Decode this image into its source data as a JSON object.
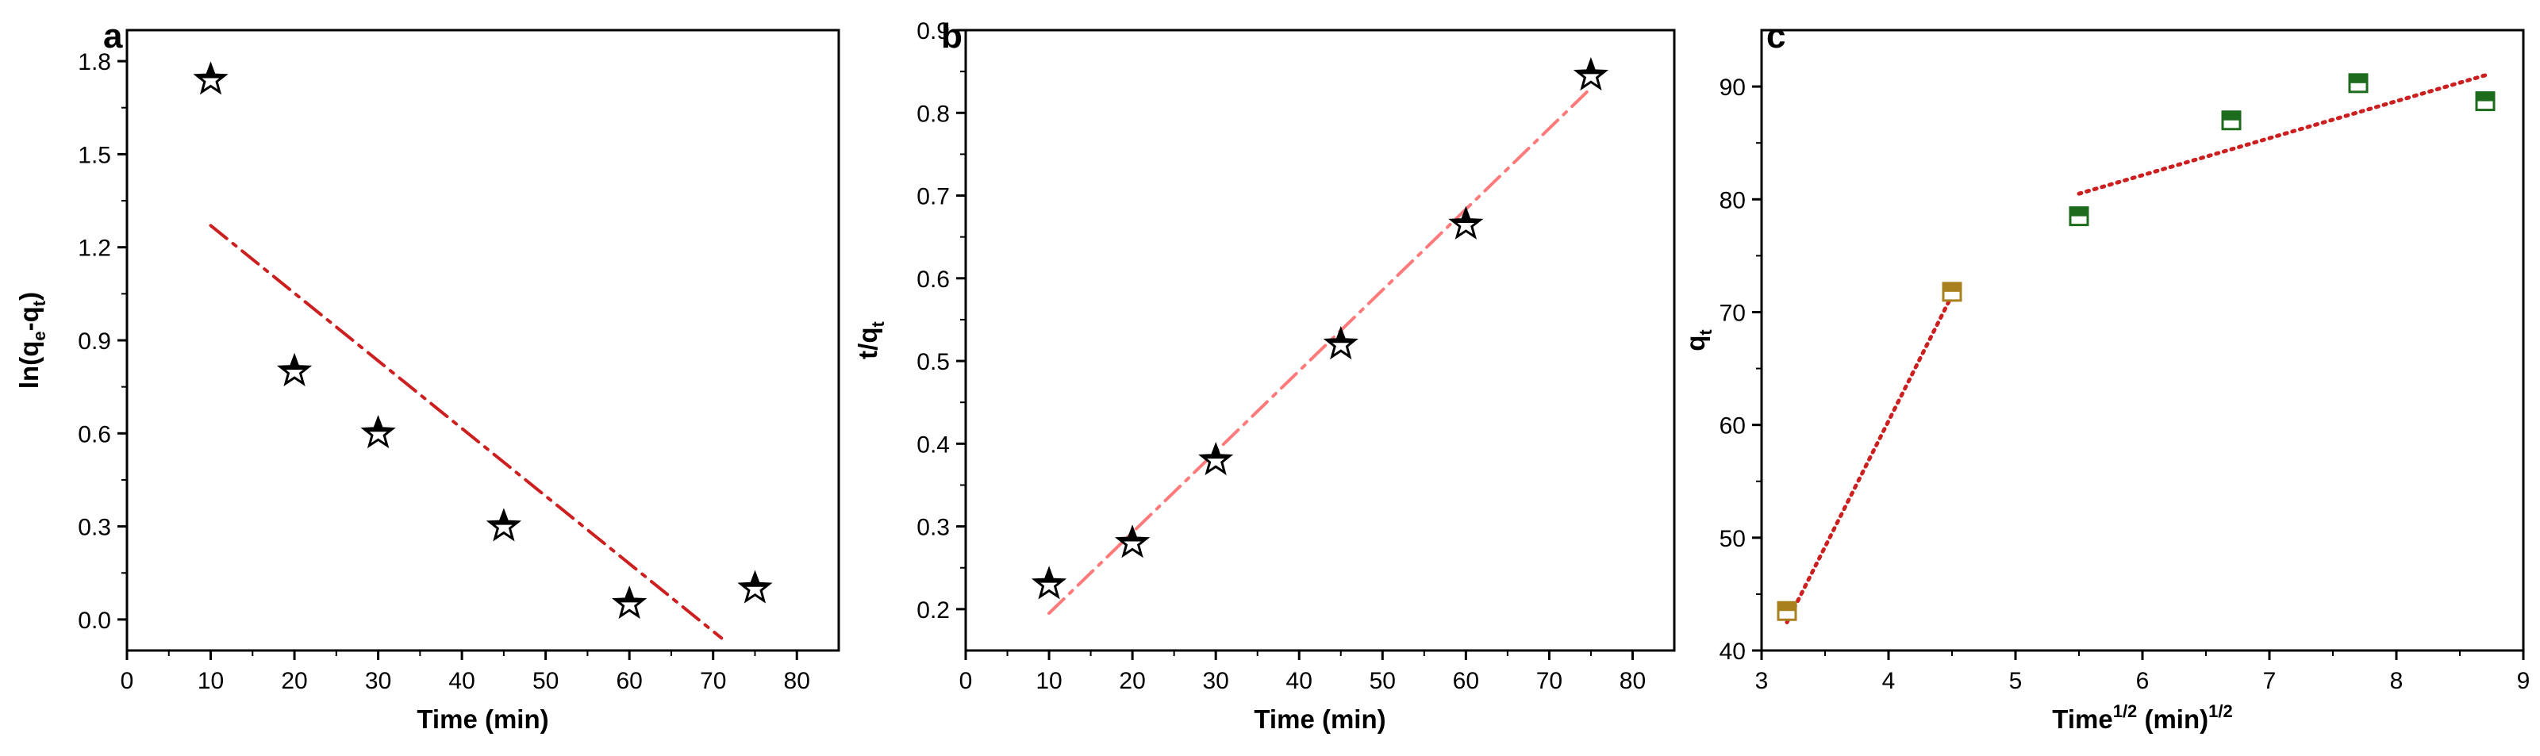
{
  "chart_data": [
    {
      "type": "scatter",
      "panel": "a",
      "xlabel": "Time (min)",
      "ylabel": {
        "main": "ln(q",
        "sub1": "e",
        "mid": "-q",
        "sub2": "t",
        "end": ")"
      },
      "xlim": [
        0,
        85
      ],
      "ylim": [
        -0.1,
        1.9
      ],
      "xticks": [
        0,
        10,
        20,
        30,
        40,
        50,
        60,
        70,
        80
      ],
      "yticks": [
        0.0,
        0.3,
        0.6,
        0.9,
        1.2,
        1.5,
        1.8
      ],
      "ytick_labels": [
        "0.0",
        "0.3",
        "0.6",
        "0.9",
        "1.2",
        "1.5",
        "1.8"
      ],
      "marker": "star",
      "series": [
        {
          "x": [
            10,
            20,
            30,
            45,
            60,
            75
          ],
          "y": [
            1.74,
            0.8,
            0.6,
            0.3,
            0.05,
            0.1
          ]
        }
      ],
      "fit_lines": [
        {
          "x": [
            10,
            71
          ],
          "y": [
            1.27,
            -0.06
          ],
          "style": "dash-dot",
          "color": "#cc1f1f"
        }
      ]
    },
    {
      "type": "scatter",
      "panel": "b",
      "xlabel": "Time (min)",
      "ylabel": {
        "main": "t/q",
        "sub1": "t"
      },
      "xlim": [
        0,
        85
      ],
      "ylim": [
        0.15,
        0.9
      ],
      "xticks": [
        0,
        10,
        20,
        30,
        40,
        50,
        60,
        70,
        80
      ],
      "yticks": [
        0.2,
        0.3,
        0.4,
        0.5,
        0.6,
        0.7,
        0.8,
        0.9
      ],
      "ytick_labels": [
        "0.2",
        "0.3",
        "0.4",
        "0.5",
        "0.6",
        "0.7",
        "0.8",
        "0.9"
      ],
      "marker": "star",
      "series": [
        {
          "x": [
            10,
            20,
            30,
            45,
            60,
            75
          ],
          "y": [
            0.23,
            0.28,
            0.38,
            0.52,
            0.665,
            0.845
          ]
        }
      ],
      "fit_lines": [
        {
          "x": [
            10,
            75
          ],
          "y": [
            0.195,
            0.83
          ],
          "style": "dash-dot",
          "color": "#ff7a7a"
        }
      ]
    },
    {
      "type": "scatter",
      "panel": "c",
      "xlabel": {
        "main": "Time",
        "sup1": "1/2",
        "mid": " (min)",
        "sup2": "1/2"
      },
      "ylabel": {
        "main": "q",
        "sub1": "t"
      },
      "xlim": [
        3,
        9
      ],
      "ylim": [
        40,
        95
      ],
      "xticks": [
        3,
        4,
        5,
        6,
        7,
        8,
        9
      ],
      "yticks": [
        40,
        50,
        60,
        70,
        80,
        90
      ],
      "ytick_labels": [
        "40",
        "50",
        "60",
        "70",
        "80",
        "90"
      ],
      "marker": "half-filled-square",
      "series": [
        {
          "x": [
            3.2,
            4.5
          ],
          "y": [
            43.5,
            71.8
          ],
          "color": "#a8801e"
        },
        {
          "x": [
            5.5,
            6.7,
            7.7,
            8.7
          ],
          "y": [
            78.5,
            87.0,
            90.3,
            88.7
          ],
          "color": "#1d6b1d"
        }
      ],
      "fit_lines": [
        {
          "x": [
            3.2,
            4.5
          ],
          "y": [
            42.5,
            71.5
          ],
          "style": "dotted",
          "color": "#cc1f1f"
        },
        {
          "x": [
            5.5,
            8.7
          ],
          "y": [
            80.5,
            91.0
          ],
          "style": "dotted",
          "color": "#cc1f1f"
        }
      ]
    }
  ]
}
